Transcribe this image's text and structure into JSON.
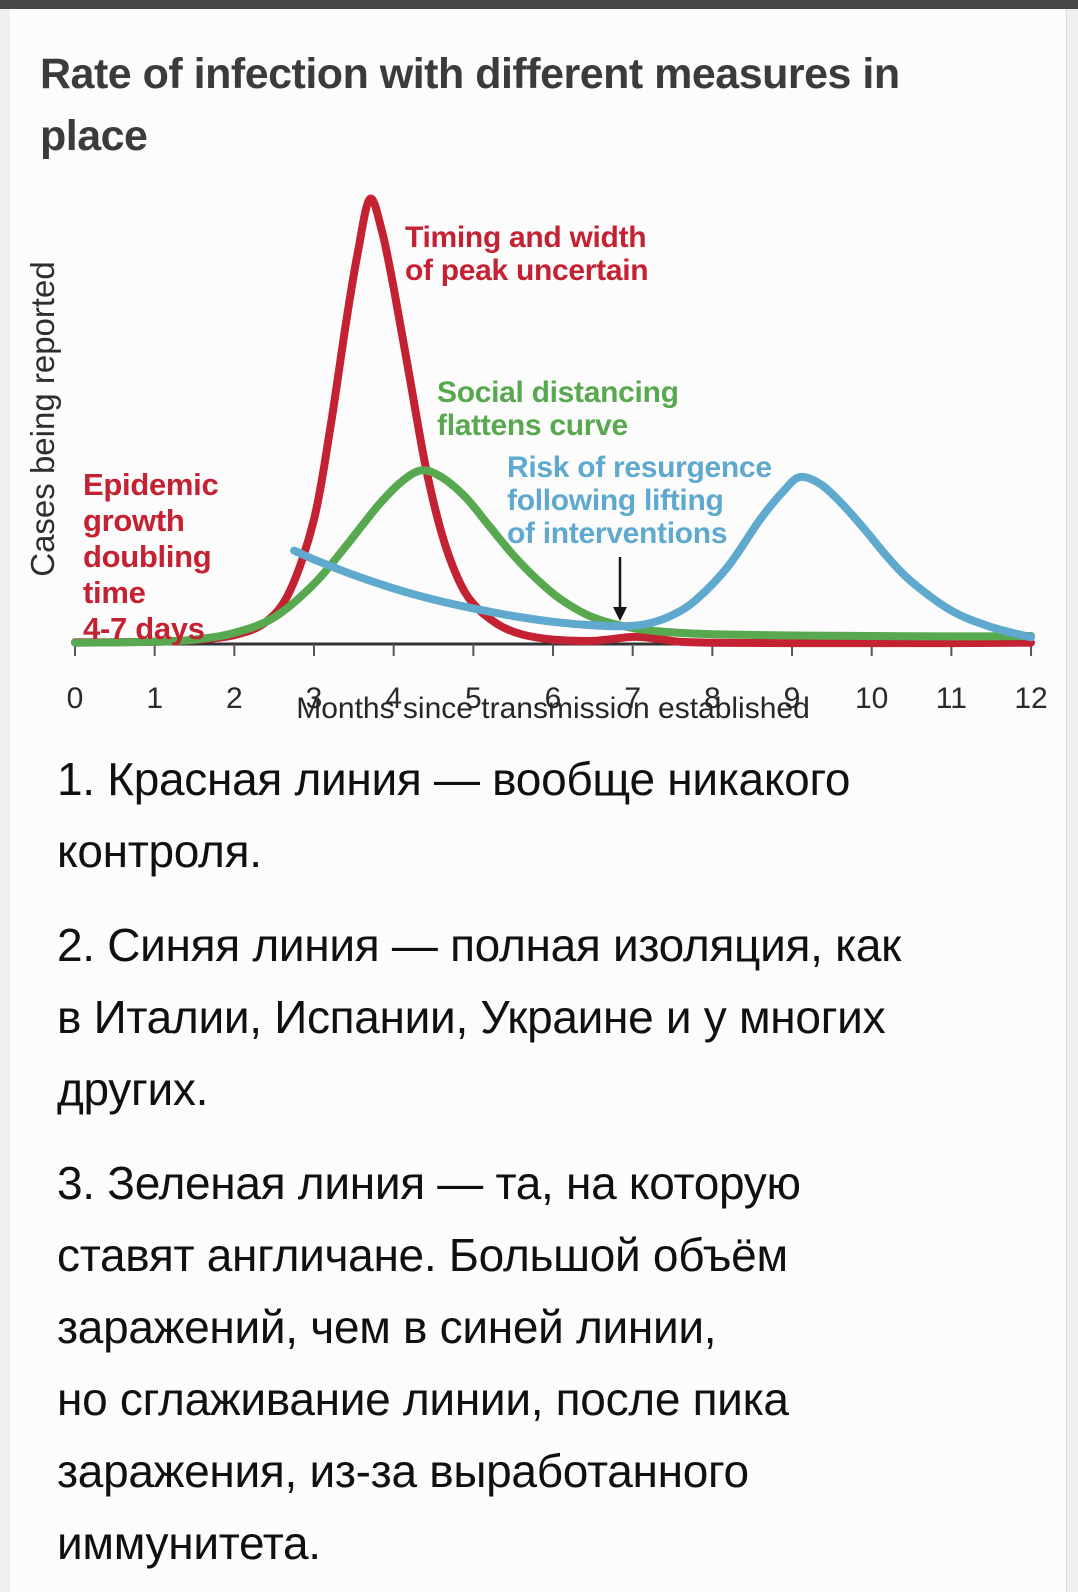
{
  "page": {
    "title": "Rate of infection with different measures in\nplace"
  },
  "chart_data": {
    "type": "line",
    "title": "Rate of infection with different measures in place",
    "xlabel": "Months since transmission established",
    "ylabel": "Cases being reported",
    "x_ticks": [
      "0",
      "1",
      "2",
      "3",
      "4",
      "5",
      "6",
      "7",
      "8",
      "9",
      "10",
      "11",
      "12"
    ],
    "xlim": [
      0,
      12
    ],
    "ylim": [
      0,
      110
    ],
    "grid": false,
    "legend_position": "none (curves labeled by colored annotations)",
    "colors": {
      "red": "#c42133",
      "green": "#57a84e",
      "blue": "#5fa9cf",
      "axis": "#333333",
      "tick_text": "#2a2a2a",
      "arrow": "#161616"
    },
    "series": [
      {
        "name": "no-control-red",
        "meaning": "Epidemic growth doubling time 4-7 days (no control)",
        "color": "#c42133",
        "points": [
          [
            0,
            0.4
          ],
          [
            0.5,
            0.4
          ],
          [
            1,
            0.5
          ],
          [
            1.5,
            0.9
          ],
          [
            2,
            2
          ],
          [
            2.4,
            5
          ],
          [
            2.7,
            12
          ],
          [
            3,
            28
          ],
          [
            3.2,
            48
          ],
          [
            3.4,
            72
          ],
          [
            3.55,
            88
          ],
          [
            3.7,
            100
          ],
          [
            3.85,
            93
          ],
          [
            4,
            80
          ],
          [
            4.2,
            60
          ],
          [
            4.4,
            40
          ],
          [
            4.6,
            25
          ],
          [
            4.8,
            15
          ],
          [
            5,
            9
          ],
          [
            5.3,
            4.5
          ],
          [
            5.6,
            2.2
          ],
          [
            6,
            1
          ],
          [
            6.5,
            0.7
          ],
          [
            7,
            1.6
          ],
          [
            7.3,
            1.2
          ],
          [
            7.6,
            0.5
          ],
          [
            8,
            0.3
          ],
          [
            9,
            0.2
          ],
          [
            10,
            0.2
          ],
          [
            11,
            0.2
          ],
          [
            12,
            0.3
          ]
        ]
      },
      {
        "name": "social-distancing-green",
        "meaning": "Social distancing flattens curve",
        "color": "#57a84e",
        "points": [
          [
            0,
            0.3
          ],
          [
            1,
            0.5
          ],
          [
            1.5,
            1
          ],
          [
            2,
            2.5
          ],
          [
            2.5,
            6
          ],
          [
            3,
            13.5
          ],
          [
            3.4,
            22
          ],
          [
            3.8,
            31
          ],
          [
            4.1,
            36.5
          ],
          [
            4.35,
            39
          ],
          [
            4.6,
            37.5
          ],
          [
            4.9,
            33
          ],
          [
            5.2,
            26.5
          ],
          [
            5.5,
            20
          ],
          [
            5.8,
            14.5
          ],
          [
            6.1,
            10
          ],
          [
            6.5,
            6
          ],
          [
            7,
            3.6
          ],
          [
            7.5,
            2.6
          ],
          [
            8,
            2.2
          ],
          [
            9,
            1.9
          ],
          [
            10,
            1.8
          ],
          [
            11,
            1.7
          ],
          [
            12,
            1.8
          ]
        ]
      },
      {
        "name": "lockdown-lifting-blue",
        "meaning": "Full isolation, risk of resurgence following lifting of interventions",
        "color": "#5fa9cf",
        "points": [
          [
            2.75,
            21
          ],
          [
            3,
            19
          ],
          [
            3.5,
            15.5
          ],
          [
            4,
            12.5
          ],
          [
            4.5,
            10
          ],
          [
            5,
            8
          ],
          [
            5.5,
            6.3
          ],
          [
            6,
            5
          ],
          [
            6.5,
            4.2
          ],
          [
            6.9,
            4
          ],
          [
            7.2,
            4.6
          ],
          [
            7.5,
            6.5
          ],
          [
            7.8,
            10
          ],
          [
            8.2,
            17.5
          ],
          [
            8.6,
            28
          ],
          [
            8.9,
            34.5
          ],
          [
            9.1,
            37.5
          ],
          [
            9.35,
            36
          ],
          [
            9.6,
            32
          ],
          [
            9.9,
            26
          ],
          [
            10.2,
            19.5
          ],
          [
            10.5,
            14
          ],
          [
            11,
            7.5
          ],
          [
            11.5,
            3.8
          ],
          [
            12,
            1.5
          ]
        ]
      }
    ],
    "annotations": [
      {
        "id": "red-peak",
        "text": "Timing and width\nof peak uncertain",
        "color": "#c42133"
      },
      {
        "id": "green",
        "text": "Social distancing\nflattens curve",
        "color": "#57a84e"
      },
      {
        "id": "blue",
        "text": "Risk of resurgence\nfollowing lifting\nof interventions",
        "color": "#5fa9cf"
      },
      {
        "id": "red-left",
        "text": "Epidemic\ngrowth\ndoubling\ntime\n4-7 days",
        "color": "#c42133"
      },
      {
        "id": "lifting-arrow",
        "type": "arrow",
        "points_to_month": 7,
        "color": "#161616"
      }
    ]
  },
  "notes": {
    "p1": "1. Красная линия — вообще никакого\nконтроля.",
    "p2": "2. Синяя линия — полная изоляция, как\nв Италии, Испании, Украине и у многих\nдругих.",
    "p3": "3. Зеленая линия — та, на которую\nставят англичане. Большой объём\nзаражений, чем в синей линии,\nно сглаживание линии, после пика\nзаражения, из-за выработанного\nиммунитета."
  }
}
